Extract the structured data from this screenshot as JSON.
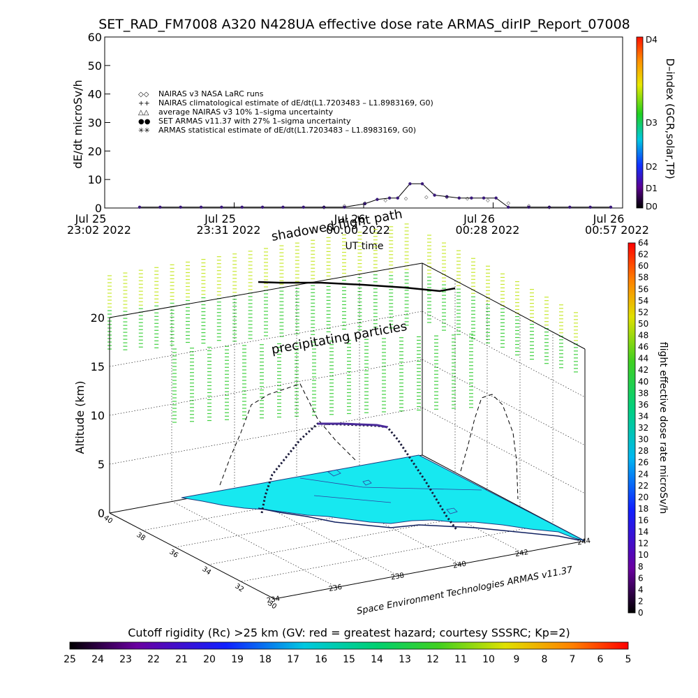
{
  "title": "SET_RAD_FM7008  A320 N428UA effective dose rate ARMAS_dirIP_Report_07008",
  "chart_data": [
    {
      "type": "line",
      "ylabel": "dE/dt microSv/h",
      "xlabel": "UT time",
      "ylim": [
        0,
        60
      ],
      "yticks": [
        "0",
        "10",
        "20",
        "30",
        "40",
        "50",
        "60"
      ],
      "xticks": [
        {
          "line1": "Jul 25",
          "line2": "23:02  2022"
        },
        {
          "line1": "Jul 25",
          "line2": "23:31  2022"
        },
        {
          "line1": "Jul 26",
          "line2": "00:00  2022"
        },
        {
          "line1": "Jul 26",
          "line2": "00:28  2022"
        },
        {
          "line1": "Jul 26",
          "line2": "00:57  2022"
        }
      ],
      "legend": [
        {
          "symbol": "◇◇",
          "label": "NAIRAS v3 NASA LaRC runs"
        },
        {
          "symbol": "++",
          "label": "NAIRAS climatological estimate of dE/dt(L1.7203483 – L1.8983169, G0)"
        },
        {
          "symbol": "△△",
          "label": "average NAIRAS v3 10% 1–sigma uncertainty"
        },
        {
          "symbol": "●●",
          "label": "SET ARMAS v11.37 with 27% 1–sigma uncertainty"
        },
        {
          "symbol": "✳✳",
          "label": "ARMAS statistical estimate of dE/dt(L1.7203483 – L1.8983169, G0)"
        }
      ],
      "series": [
        {
          "name": "SET ARMAS v11.37 with 27% 1–sigma uncertainty",
          "x_min": [
            0,
            5,
            10,
            15,
            20,
            25,
            30,
            35,
            40,
            45,
            50,
            55,
            58,
            61,
            63,
            66,
            69,
            72,
            75,
            78,
            81,
            84,
            87,
            90,
            95,
            100,
            105,
            110,
            115
          ],
          "values": [
            0.3,
            0.3,
            0.3,
            0.3,
            0.3,
            0.3,
            0.3,
            0.3,
            0.3,
            0.3,
            0.3,
            1.5,
            3.0,
            3.5,
            3.5,
            8.5,
            8.5,
            4.5,
            4.0,
            3.5,
            3.5,
            3.5,
            3.5,
            0.3,
            0.3,
            0.3,
            0.3,
            0.3,
            0.3
          ]
        },
        {
          "name": "NAIRAS v3 NASA LaRC runs",
          "x_min": [
            45,
            50,
            55,
            60,
            65,
            70,
            75,
            80,
            85,
            90,
            95,
            100
          ],
          "values": [
            0.5,
            1.0,
            2.0,
            3.0,
            3.5,
            4.0,
            4.0,
            3.5,
            3.0,
            2.0,
            1.0,
            0.5
          ]
        }
      ],
      "right_axis": {
        "label": "D–index (GCR,solar,TP)",
        "ticks": [
          "D4",
          "D3",
          "D2",
          "D1",
          "D0"
        ]
      }
    },
    {
      "type": "3d-scene",
      "zlabel": "Altitude (km)",
      "zticks": [
        "0",
        "5",
        "10",
        "15",
        "20"
      ],
      "lat_ticks": [
        "40",
        "38",
        "36",
        "34",
        "32",
        "30"
      ],
      "lon_ticks": [
        "234",
        "236",
        "238",
        "240",
        "242",
        "244"
      ],
      "annotations": [
        "shadowed flight path",
        "precipitating particles"
      ],
      "credit": "Space Environment Technologies ARMAS v11.37",
      "right_colorbar": {
        "label": "flight effective dose rate microSv/h",
        "ticks": [
          "0",
          "2",
          "4",
          "6",
          "8",
          "10",
          "12",
          "14",
          "16",
          "18",
          "20",
          "22",
          "24",
          "26",
          "28",
          "30",
          "32",
          "34",
          "36",
          "38",
          "40",
          "42",
          "44",
          "46",
          "48",
          "50",
          "52",
          "54",
          "56",
          "58",
          "60",
          "62",
          "64"
        ]
      }
    },
    {
      "type": "colorbar",
      "title": "Cutoff rigidity (Rc) >25 km (GV: red = greatest hazard; courtesy SSSRC; Kp=2)",
      "ticks": [
        "25",
        "24",
        "23",
        "22",
        "21",
        "20",
        "19",
        "18",
        "17",
        "16",
        "15",
        "14",
        "13",
        "12",
        "11",
        "10",
        "9",
        "8",
        "7",
        "6",
        "5"
      ]
    }
  ],
  "colors": {
    "map_fill": "#17e8f0",
    "particles_upper": "#c8e830",
    "particles_lower": "#40d040",
    "armas_series": "#3a1a7a"
  }
}
